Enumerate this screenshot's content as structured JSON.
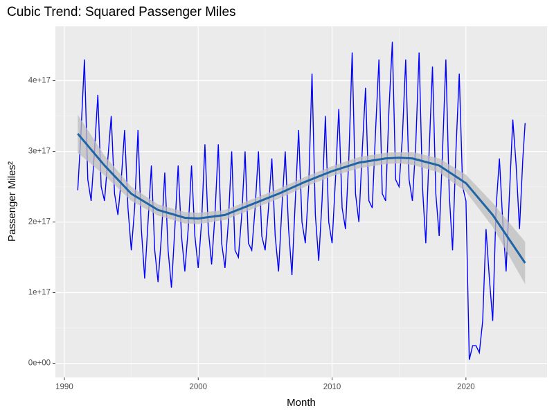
{
  "chart_data": {
    "type": "line",
    "title": "Cubic Trend: Squared Passenger Miles",
    "x_label": "Month",
    "y_label": "Passenger Miles²",
    "xlim": [
      1989.33,
      2026.06
    ],
    "ylim": [
      -2e+16,
      4.77e+17
    ],
    "xticks": [
      1990,
      2000,
      2010,
      2020
    ],
    "yticks": [
      {
        "value": 0,
        "label": "0e+00"
      },
      {
        "value": 1e+17,
        "label": "1e+17"
      },
      {
        "value": 2e+17,
        "label": "2e+17"
      },
      {
        "value": 3e+17,
        "label": "3e+17"
      },
      {
        "value": 4e+17,
        "label": "4e+17"
      }
    ],
    "grid": true,
    "series": [
      {
        "color": "#0000ff",
        "x": [
          1991,
          1991.25,
          1991.5,
          1991.75,
          1992,
          1992.25,
          1992.5,
          1992.75,
          1993,
          1993.25,
          1993.5,
          1993.75,
          1994,
          1994.25,
          1994.5,
          1994.75,
          1995,
          1995.25,
          1995.5,
          1995.75,
          1996,
          1996.25,
          1996.5,
          1996.75,
          1997,
          1997.25,
          1997.5,
          1997.75,
          1998,
          1998.25,
          1998.5,
          1998.75,
          1999,
          1999.25,
          1999.5,
          1999.75,
          2000,
          2000.25,
          2000.5,
          2000.75,
          2001,
          2001.25,
          2001.5,
          2001.75,
          2002,
          2002.25,
          2002.5,
          2002.75,
          2003,
          2003.25,
          2003.5,
          2003.75,
          2004,
          2004.25,
          2004.5,
          2004.75,
          2005,
          2005.25,
          2005.5,
          2005.75,
          2006,
          2006.25,
          2006.5,
          2006.75,
          2007,
          2007.25,
          2007.5,
          2007.75,
          2008,
          2008.25,
          2008.5,
          2008.75,
          2009,
          2009.25,
          2009.5,
          2009.75,
          2010,
          2010.25,
          2010.5,
          2010.75,
          2011,
          2011.25,
          2011.5,
          2011.75,
          2012,
          2012.25,
          2012.5,
          2012.75,
          2013,
          2013.25,
          2013.5,
          2013.75,
          2014,
          2014.25,
          2014.5,
          2014.75,
          2015,
          2015.25,
          2015.5,
          2015.75,
          2016,
          2016.25,
          2016.5,
          2016.75,
          2017,
          2017.25,
          2017.5,
          2017.75,
          2018,
          2018.25,
          2018.5,
          2018.75,
          2019,
          2019.25,
          2019.5,
          2019.75,
          2020,
          2020.25,
          2020.5,
          2020.75,
          2021,
          2021.25,
          2021.5,
          2021.75,
          2022,
          2022.25,
          2022.5,
          2022.75,
          2023,
          2023.25,
          2023.5,
          2023.75,
          2024,
          2024.25,
          2024.42
        ],
        "values": [
          2.45e+17,
          3.3e+17,
          4.3e+17,
          2.6e+17,
          2.3e+17,
          3e+17,
          3.8e+17,
          2.5e+17,
          2.3e+17,
          2.9e+17,
          3.5e+17,
          2.4e+17,
          2.1e+17,
          2.6e+17,
          3.3e+17,
          2.2e+17,
          1.6e+17,
          2.2e+17,
          3.3e+17,
          1.9e+17,
          1.2e+17,
          2e+17,
          2.8e+17,
          1.6e+17,
          1.15e+17,
          1.8e+17,
          2.7e+17,
          1.6e+17,
          1.07e+17,
          1.9e+17,
          2.8e+17,
          1.8e+17,
          1.3e+17,
          1.9e+17,
          2.8e+17,
          1.8e+17,
          1.35e+17,
          2e+17,
          3.1e+17,
          1.9e+17,
          1.4e+17,
          2.1e+17,
          3.1e+17,
          1.7e+17,
          1.35e+17,
          2e+17,
          3e+17,
          1.6e+17,
          1.5e+17,
          2.1e+17,
          3e+17,
          1.7e+17,
          1.6e+17,
          2.2e+17,
          3e+17,
          1.8e+17,
          1.6e+17,
          2.2e+17,
          2.9e+17,
          1.8e+17,
          1.3e+17,
          2.2e+17,
          3e+17,
          1.9e+17,
          1.25e+17,
          2.3e+17,
          3.3e+17,
          2e+17,
          1.7e+17,
          2.5e+17,
          4.1e+17,
          2.1e+17,
          1.45e+17,
          2.3e+17,
          3.5e+17,
          2e+17,
          1.7e+17,
          2.6e+17,
          3.6e+17,
          2.2e+17,
          1.9e+17,
          2.9e+17,
          4.4e+17,
          2.4e+17,
          2e+17,
          3e+17,
          3.9e+17,
          2.3e+17,
          2.2e+17,
          3.3e+17,
          4.3e+17,
          2.4e+17,
          2.3e+17,
          3.6e+17,
          4.55e+17,
          2.6e+17,
          2.5e+17,
          3.2e+17,
          4.3e+17,
          2.6e+17,
          2.3e+17,
          3.1e+17,
          4.4e+17,
          2.5e+17,
          1.7e+17,
          3e+17,
          4.2e+17,
          2.4e+17,
          1.8e+17,
          3e+17,
          4.3e+17,
          2.4e+17,
          1.6e+17,
          3e+17,
          4.1e+17,
          2.5e+17,
          2.3e+17,
          5000000000000000.0,
          2.5e+16,
          2.5e+16,
          1.5e+16,
          6e+16,
          1.9e+17,
          1.2e+17,
          6e+16,
          2.2e+17,
          2.9e+17,
          2e+17,
          1.3e+17,
          2.4e+17,
          3.45e+17,
          2.8e+17,
          1.9e+17,
          2.9e+17,
          3.4e+17
        ]
      }
    ],
    "smooth": {
      "color": "#1f65a6",
      "band_color": "#bdbdbd",
      "x": [
        1991,
        1993,
        1995,
        1997,
        1999,
        2000,
        2002,
        2004,
        2006,
        2008,
        2010,
        2012,
        2014,
        2015,
        2016,
        2018,
        2020,
        2022,
        2024.42
      ],
      "values": [
        3.25e+17,
        2.8e+17,
        2.4e+17,
        2.17e+17,
        2.06e+17,
        2.05e+17,
        2.1e+17,
        2.25e+17,
        2.4e+17,
        2.57e+17,
        2.72e+17,
        2.84e+17,
        2.9e+17,
        2.91e+17,
        2.9e+17,
        2.8e+17,
        2.55e+17,
        2.1e+17,
        1.42e+17
      ],
      "lower": [
        2.98e+17,
        2.66e+17,
        2.3e+17,
        2.09e+17,
        1.98e+17,
        1.97e+17,
        2.03e+17,
        2.18e+17,
        2.33e+17,
        2.5e+17,
        2.65e+17,
        2.76e+17,
        2.82e+17,
        2.83e+17,
        2.81e+17,
        2.7e+17,
        2.43e+17,
        1.93e+17,
        1.12e+17
      ],
      "upper": [
        3.52e+17,
        2.94e+17,
        2.5e+17,
        2.25e+17,
        2.14e+17,
        2.13e+17,
        2.17e+17,
        2.32e+17,
        2.47e+17,
        2.64e+17,
        2.79e+17,
        2.92e+17,
        2.98e+17,
        2.99e+17,
        2.99e+17,
        2.9e+17,
        2.67e+17,
        2.27e+17,
        1.72e+17
      ]
    }
  }
}
